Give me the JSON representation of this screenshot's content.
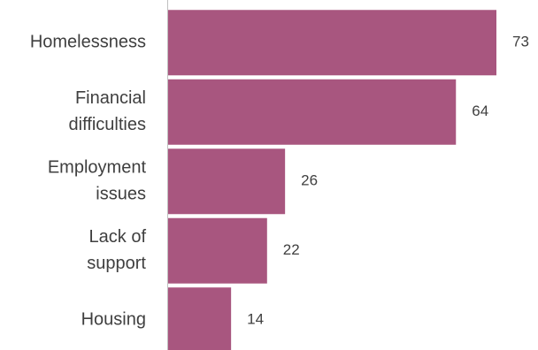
{
  "chart_data": {
    "type": "bar",
    "orientation": "horizontal",
    "categories": [
      [
        "Homelessness"
      ],
      [
        "Financial",
        "difficulties"
      ],
      [
        "Employment",
        "issues"
      ],
      [
        "Lack of",
        "support"
      ],
      [
        "Housing"
      ]
    ],
    "values": [
      73,
      64,
      26,
      22,
      14
    ],
    "series": [
      {
        "values": [
          73,
          64,
          26,
          22,
          14
        ],
        "color": "#a8567f"
      }
    ],
    "title": "",
    "xlabel": "",
    "ylabel": "",
    "xlim": [
      0,
      80
    ],
    "grid": false,
    "legend": "none",
    "data_labels": true
  },
  "colors": {
    "bar": "#a8567f",
    "axis": "#bfbfbf",
    "text": "#3f3f3f"
  }
}
